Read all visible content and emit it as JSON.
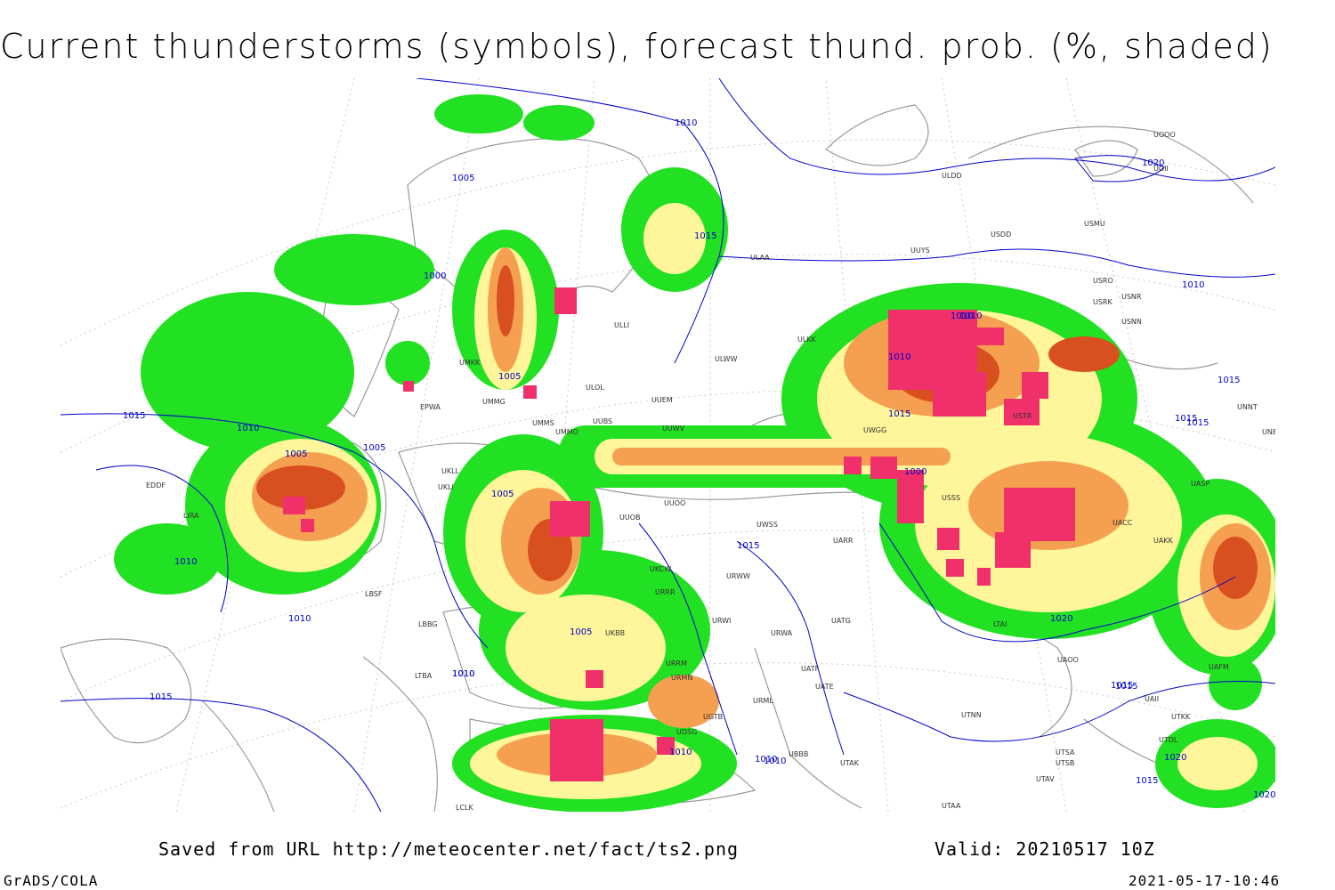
{
  "title": "Current thunderstorms (symbols), forecast thund. prob. (%, shaded)",
  "footer": {
    "saved_from": "Saved from URL http://meteocenter.net/fact/ts2.png",
    "valid": "Valid: 20210517 10Z",
    "software": "GrADS/COLA",
    "generated": "2021-05-17-10:46"
  },
  "colors": {
    "prob_low": "#22e022",
    "prob_mid": "#fff59a",
    "prob_high": "#f4a050",
    "prob_very_high": "#d85020",
    "storm_symbol": "#f0306a",
    "isobar": "#0000cc",
    "border": "#9a9a9a"
  },
  "isobar_labels": [
    "1010",
    "1005",
    "1015",
    "1000",
    "1010",
    "1005",
    "1010",
    "1015",
    "1010",
    "1015",
    "1010",
    "1005",
    "1005",
    "1010",
    "1010",
    "1010",
    "1005",
    "1015",
    "1010",
    "1005",
    "1015",
    "1010",
    "1000",
    "1015",
    "1015",
    "1020",
    "1015",
    "1020",
    "1010",
    "1015",
    "1020",
    "1020",
    "1015",
    "1010",
    "1010",
    "1015"
  ],
  "station_labels": [
    "ULDD",
    "UUYS",
    "USDD",
    "USMU",
    "ULAA",
    "USRO",
    "USRK",
    "USNR",
    "USNN",
    "UOOO",
    "UOII",
    "ULKK",
    "ULWW",
    "ULLI",
    "UMKK",
    "ULOL",
    "UUEM",
    "UUWV",
    "UWGG",
    "USTR",
    "USSS",
    "UNNT",
    "UNBB",
    "UASP",
    "UACC",
    "UAKK",
    "UMMS",
    "UUBS",
    "UMMO",
    "UKLL",
    "UKLI",
    "UUOB",
    "UUOO",
    "UWSS",
    "UARR",
    "UKCW",
    "URRR",
    "URWW",
    "URWI",
    "UATG",
    "UKBB",
    "LBBG",
    "URRM",
    "URMN",
    "URWA",
    "UATE",
    "UATF",
    "URML",
    "UGTB",
    "UBBB",
    "UTAK",
    "UDSG",
    "UTNN",
    "UAOO",
    "LTBA",
    "LTAI",
    "UTSA",
    "UTSB",
    "UTAV",
    "UTAA",
    "LCLK",
    "LIRA",
    "EPWA",
    "UMMG",
    "LBSF",
    "EDDF",
    "UAFM",
    "UTDL",
    "UAII",
    "UTKK"
  ],
  "legend_note": ""
}
